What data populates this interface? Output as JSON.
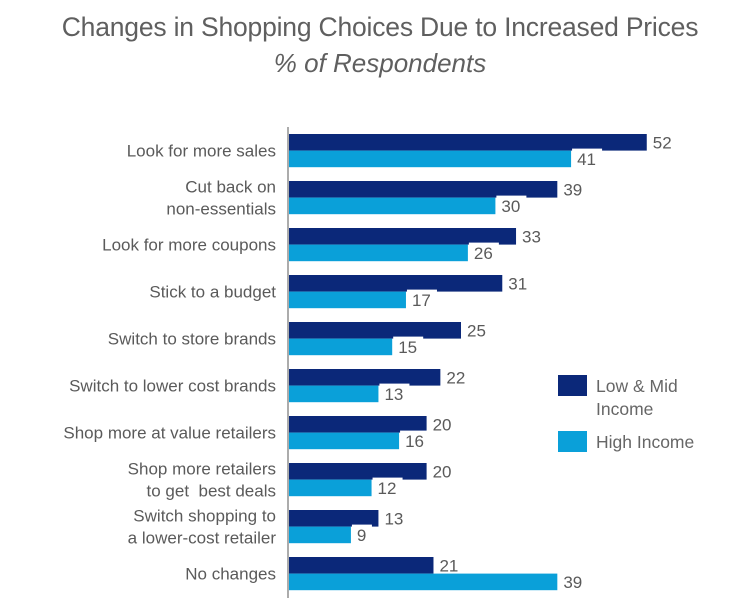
{
  "chart_data": {
    "type": "bar",
    "orientation": "horizontal",
    "title": "Changes in Shopping Choices Due to Increased Prices",
    "subtitle": "% of Respondents",
    "xlabel": "",
    "ylabel": "",
    "xlim": [
      0,
      60
    ],
    "grid": false,
    "legend_position": "right",
    "categories": [
      [
        "Look for more sales"
      ],
      [
        "Cut back on",
        "non-essentials"
      ],
      [
        "Look for more coupons"
      ],
      [
        "Stick to a budget"
      ],
      [
        "Switch to store brands"
      ],
      [
        "Switch to lower cost brands"
      ],
      [
        "Shop more at value retailers"
      ],
      [
        "Shop more retailers",
        "to get  best deals"
      ],
      [
        "Switch shopping to",
        "a lower-cost retailer"
      ],
      [
        "No changes"
      ]
    ],
    "series": [
      {
        "name": "Low & Mid Income",
        "legend_lines": [
          "Low & Mid",
          "Income"
        ],
        "color": "#0b2879",
        "values": [
          52,
          39,
          33,
          31,
          25,
          22,
          20,
          20,
          13,
          21
        ]
      },
      {
        "name": "High Income",
        "legend_lines": [
          "High Income"
        ],
        "color": "#0aa0d9",
        "values": [
          41,
          30,
          26,
          17,
          15,
          13,
          16,
          12,
          9,
          39
        ]
      }
    ],
    "data_labels": true
  }
}
